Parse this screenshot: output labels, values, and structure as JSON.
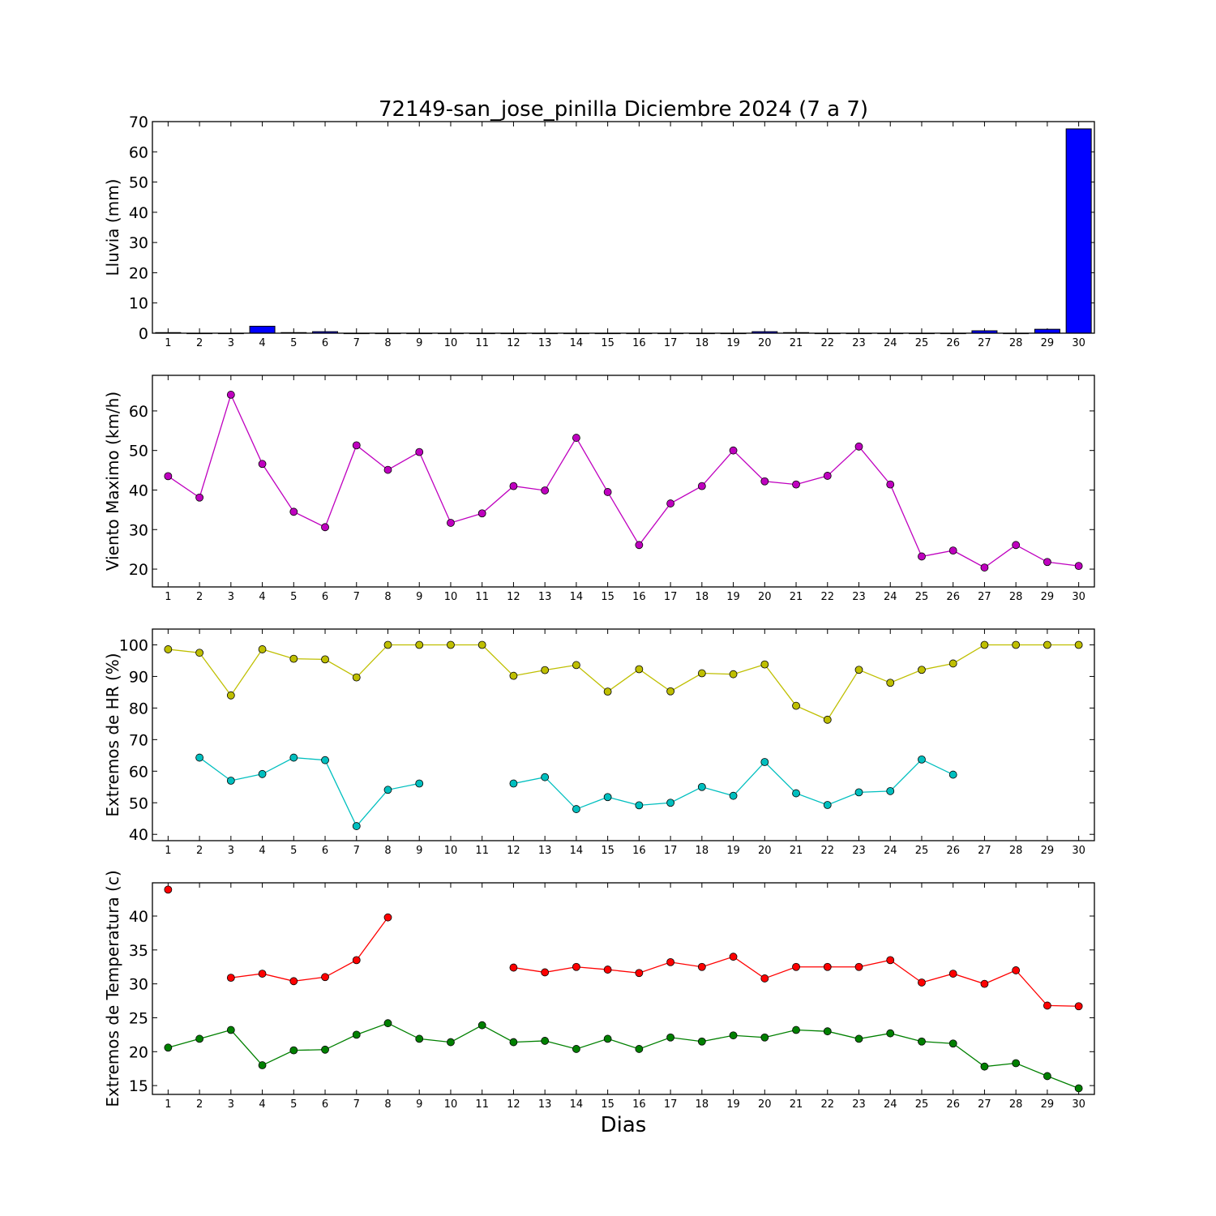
{
  "title": "72149-san_jose_pinilla Diciembre 2024  (7 a 7)",
  "xlabel": "Dias",
  "chart_data": [
    {
      "type": "bar",
      "ylabel": "Lluvia (mm)",
      "ylim": [
        0,
        70
      ],
      "yticks": [
        0,
        10,
        20,
        30,
        40,
        50,
        60,
        70
      ],
      "x": [
        1,
        2,
        3,
        4,
        5,
        6,
        7,
        8,
        9,
        10,
        11,
        12,
        13,
        14,
        15,
        16,
        17,
        18,
        19,
        20,
        21,
        22,
        23,
        24,
        25,
        26,
        27,
        28,
        29,
        30
      ],
      "series": [
        {
          "color": "#0000ff",
          "values": [
            0.2,
            0,
            0,
            2.3,
            0.2,
            0.5,
            0,
            0,
            0,
            0,
            0,
            0,
            0,
            0,
            0,
            0,
            0,
            0,
            0,
            0.5,
            0.2,
            0,
            0,
            0,
            0,
            0,
            0.8,
            0,
            1.3,
            67.6
          ]
        }
      ]
    },
    {
      "type": "line",
      "ylabel": "Viento Maximo (km/h)",
      "ylim": [
        15.5,
        69
      ],
      "yticks": [
        20,
        30,
        40,
        50,
        60
      ],
      "x": [
        1,
        2,
        3,
        4,
        5,
        6,
        7,
        8,
        9,
        10,
        11,
        12,
        13,
        14,
        15,
        16,
        17,
        18,
        19,
        20,
        21,
        22,
        23,
        24,
        25,
        26,
        27,
        28,
        29,
        30
      ],
      "series": [
        {
          "color": "#bf00bf",
          "values": [
            43.5,
            38.1,
            64.1,
            46.6,
            34.5,
            30.6,
            51.3,
            45.1,
            49.6,
            31.7,
            34.1,
            41.0,
            39.9,
            53.2,
            39.5,
            26.1,
            36.6,
            41.0,
            50.0,
            42.2,
            41.4,
            43.6,
            51.0,
            41.4,
            23.2,
            24.7,
            20.4,
            26.1,
            21.8,
            20.8
          ]
        }
      ]
    },
    {
      "type": "line",
      "ylabel": "Extremos de HR (%)",
      "ylim": [
        38,
        105
      ],
      "yticks": [
        40,
        50,
        60,
        70,
        80,
        90,
        100
      ],
      "x": [
        1,
        2,
        3,
        4,
        5,
        6,
        7,
        8,
        9,
        10,
        11,
        12,
        13,
        14,
        15,
        16,
        17,
        18,
        19,
        20,
        21,
        22,
        23,
        24,
        25,
        26,
        27,
        28,
        29,
        30
      ],
      "series": [
        {
          "color": "#bfbf00",
          "values": [
            98.6,
            97.5,
            84.0,
            98.6,
            95.6,
            95.4,
            89.7,
            100,
            100,
            100,
            100,
            90.2,
            92.0,
            93.6,
            85.2,
            92.3,
            85.3,
            91.0,
            90.7,
            93.8,
            80.7,
            76.3,
            92.1,
            88.0,
            92.1,
            94.1,
            100,
            100,
            100,
            100
          ]
        },
        {
          "color": "#00bfbf",
          "values": [
            null,
            64.3,
            57.0,
            59.1,
            64.3,
            63.5,
            42.6,
            54.1,
            56.1,
            null,
            null,
            56.1,
            58.1,
            48.0,
            51.8,
            49.2,
            50.0,
            55.0,
            52.2,
            62.9,
            53.0,
            49.3,
            53.3,
            53.7,
            63.7,
            58.9,
            null,
            null,
            null,
            null
          ]
        }
      ]
    },
    {
      "type": "line",
      "ylabel": "Extremos de Temperatura (c)",
      "ylim": [
        13.7,
        44.9
      ],
      "yticks": [
        15,
        20,
        25,
        30,
        35,
        40
      ],
      "x": [
        1,
        2,
        3,
        4,
        5,
        6,
        7,
        8,
        9,
        10,
        11,
        12,
        13,
        14,
        15,
        16,
        17,
        18,
        19,
        20,
        21,
        22,
        23,
        24,
        25,
        26,
        27,
        28,
        29,
        30
      ],
      "series": [
        {
          "color": "#ff0000",
          "values": [
            43.9,
            null,
            30.9,
            31.5,
            30.4,
            31.0,
            33.5,
            39.8,
            null,
            null,
            null,
            32.4,
            31.7,
            32.5,
            32.1,
            31.6,
            33.2,
            32.5,
            34.0,
            30.8,
            32.5,
            32.5,
            32.5,
            33.5,
            30.2,
            31.5,
            30.0,
            32.0,
            26.8,
            26.7
          ]
        },
        {
          "color": "#008000",
          "values": [
            20.6,
            21.9,
            23.2,
            18.0,
            20.2,
            20.3,
            22.5,
            24.2,
            21.9,
            21.4,
            23.9,
            21.4,
            21.6,
            20.4,
            21.9,
            20.4,
            22.1,
            21.5,
            22.4,
            22.1,
            23.2,
            23.0,
            21.9,
            22.7,
            21.5,
            21.2,
            17.8,
            18.3,
            16.4,
            14.6
          ]
        }
      ]
    }
  ]
}
